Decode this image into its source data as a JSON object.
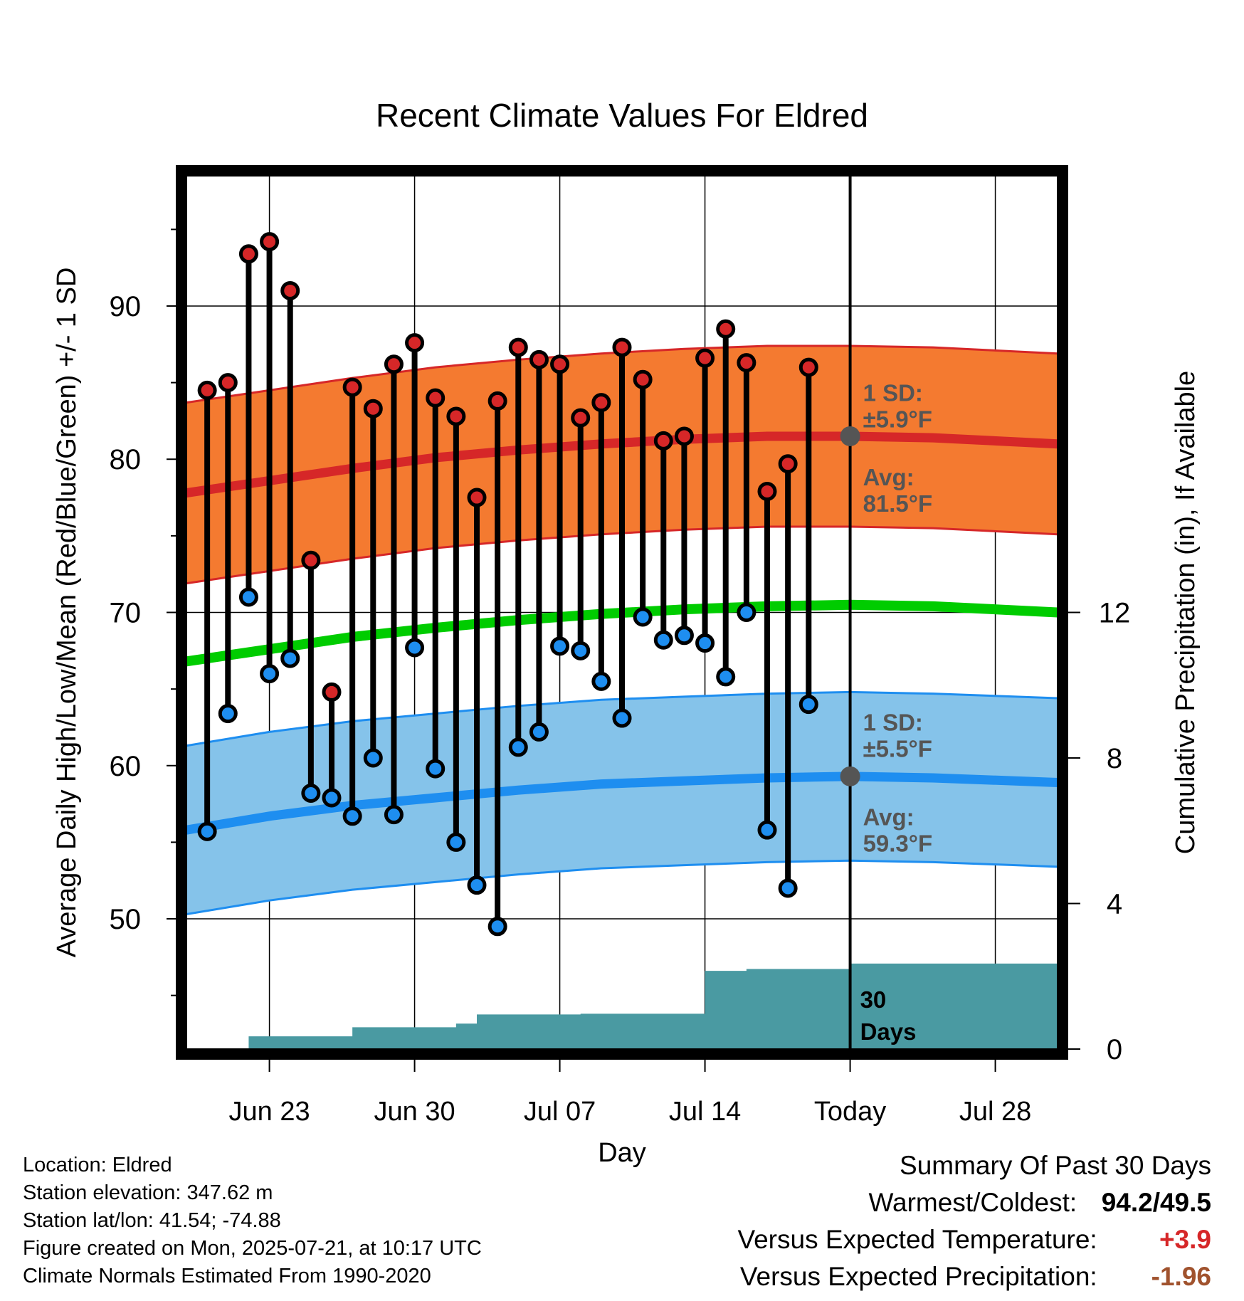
{
  "title": "Recent Climate Values For Eldred",
  "colors": {
    "high_band": "#f47a30",
    "high_mean": "#d62728",
    "low_band": "#85c3ea",
    "low_mean": "#1e8ef0",
    "mean_line": "#00cc00",
    "precip": "#4a9aa2",
    "high_dot": "#d62728",
    "low_dot": "#1e8ef0",
    "avg_marker": "#555555",
    "label_text": "#555555",
    "warm_value": "#d62728",
    "precip_value": "#a0522d"
  },
  "chart_data": {
    "type": "line",
    "title": "Recent Climate Values For Eldred",
    "xlabel": "Day",
    "ylabel": "Average Daily High/Low/Mean (Red/Blue/Green) +/- 1 SD",
    "y2label": "Cumulative Precipitation (in), If Available",
    "x_start": "2025-06-20",
    "x_end": "2025-07-31",
    "xlim": [
      "2025-06-19",
      "2025-07-31"
    ],
    "ylim": [
      41.5,
      98.5
    ],
    "y_ticks": [
      90,
      80,
      70,
      60,
      50
    ],
    "y2lim": [
      0,
      24
    ],
    "y2_ticks": [
      12,
      8,
      4,
      0
    ],
    "x_ticks": [
      {
        "date": "2025-06-23",
        "label": "Jun 23"
      },
      {
        "date": "2025-06-30",
        "label": "Jun 30"
      },
      {
        "date": "2025-07-07",
        "label": "Jul 07"
      },
      {
        "date": "2025-07-14",
        "label": "Jul 14"
      },
      {
        "date": "2025-07-21",
        "label": "Today"
      },
      {
        "date": "2025-07-28",
        "label": "Jul 28"
      }
    ],
    "today": "2025-07-21",
    "grid": true,
    "observed": {
      "dates": [
        "2025-06-20",
        "2025-06-21",
        "2025-06-22",
        "2025-06-23",
        "2025-06-24",
        "2025-06-25",
        "2025-06-26",
        "2025-06-27",
        "2025-06-28",
        "2025-06-29",
        "2025-06-30",
        "2025-07-01",
        "2025-07-02",
        "2025-07-03",
        "2025-07-04",
        "2025-07-05",
        "2025-07-06",
        "2025-07-07",
        "2025-07-08",
        "2025-07-09",
        "2025-07-10",
        "2025-07-11",
        "2025-07-12",
        "2025-07-13",
        "2025-07-14",
        "2025-07-15",
        "2025-07-16",
        "2025-07-17",
        "2025-07-18",
        "2025-07-19",
        "2025-07-20"
      ],
      "high": [
        84.5,
        85.0,
        93.4,
        94.2,
        91.0,
        73.4,
        64.8,
        84.7,
        83.3,
        86.2,
        87.6,
        84.0,
        82.8,
        77.5,
        83.8,
        87.3,
        86.5,
        86.2,
        82.7,
        83.7,
        87.3,
        85.2,
        81.2,
        81.5,
        86.6,
        88.5,
        86.3,
        77.9,
        79.7,
        86.0,
        null
      ],
      "low": [
        55.7,
        63.4,
        71.0,
        66.0,
        67.0,
        58.2,
        57.9,
        56.7,
        60.5,
        56.8,
        67.7,
        59.8,
        55.0,
        52.2,
        49.5,
        61.2,
        62.2,
        67.8,
        67.5,
        65.5,
        63.1,
        69.7,
        68.2,
        68.5,
        68.0,
        65.8,
        70.0,
        55.8,
        52.0,
        64.0,
        null
      ]
    },
    "normals": {
      "dates": [
        "2025-06-19",
        "2025-06-23",
        "2025-06-27",
        "2025-07-01",
        "2025-07-05",
        "2025-07-09",
        "2025-07-13",
        "2025-07-17",
        "2025-07-21",
        "2025-07-25",
        "2025-07-31"
      ],
      "high_mean": [
        77.8,
        78.6,
        79.4,
        80.1,
        80.6,
        81.0,
        81.3,
        81.5,
        81.5,
        81.4,
        81.0
      ],
      "low_mean": [
        55.8,
        56.7,
        57.4,
        57.9,
        58.4,
        58.8,
        59.0,
        59.2,
        59.3,
        59.2,
        58.9
      ],
      "mean": [
        66.8,
        67.6,
        68.4,
        69.0,
        69.5,
        69.9,
        70.2,
        70.4,
        70.5,
        70.4,
        70.0
      ],
      "high_sd": 5.9,
      "low_sd": 5.5,
      "mean_sd_upper_offset": 7.2
    },
    "precip": {
      "dates": [
        "2025-06-20",
        "2025-06-21",
        "2025-06-22",
        "2025-06-26",
        "2025-06-27",
        "2025-06-30",
        "2025-07-02",
        "2025-07-03",
        "2025-07-04",
        "2025-07-08",
        "2025-07-13",
        "2025-07-14",
        "2025-07-15",
        "2025-07-16",
        "2025-07-20",
        "2025-07-21",
        "2025-07-31"
      ],
      "values": [
        0.0,
        0.0,
        0.35,
        0.35,
        0.6,
        0.6,
        0.7,
        0.95,
        0.95,
        0.97,
        0.97,
        2.15,
        2.15,
        2.2,
        2.2,
        2.35,
        2.35
      ]
    },
    "annotations": [
      {
        "line1": "1 SD:",
        "line2": "±5.9°F",
        "date": "2025-07-21",
        "y": 83.8
      },
      {
        "line1": "Avg:",
        "line2": "81.5°F",
        "date": "2025-07-21",
        "y": 78.3
      },
      {
        "line1": "1 SD:",
        "line2": "±5.5°F",
        "date": "2025-07-21",
        "y": 62.3
      },
      {
        "line1": "Avg:",
        "line2": "59.3°F",
        "date": "2025-07-21",
        "y": 56.1
      }
    ],
    "days_label": [
      "30",
      "Days"
    ]
  },
  "info": {
    "location": "Location: Eldred",
    "elevation": "Station elevation: 347.62 m",
    "latlon": "Station lat/lon: 41.54; -74.88",
    "created": "Figure created on Mon, 2025-07-21, at 10:17 UTC",
    "normals": "Climate Normals Estimated From 1990-2020"
  },
  "summary": {
    "heading": "Summary Of Past 30 Days",
    "warmest_label": "Warmest/Coldest:",
    "warmest_value": "94.2/49.5",
    "temp_label": "Versus Expected Temperature:",
    "temp_value": "+3.9",
    "precip_label": "Versus Expected Precipitation:",
    "precip_value": "-1.96"
  }
}
